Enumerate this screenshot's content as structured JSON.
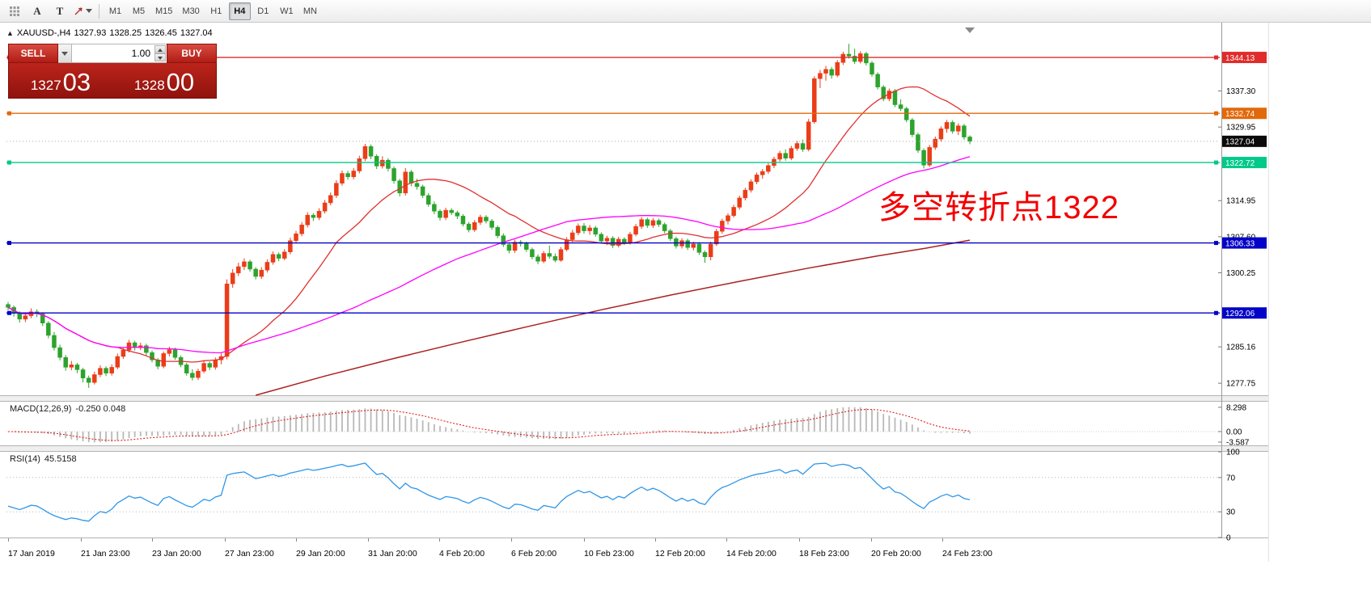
{
  "toolbar": {
    "tools": [
      {
        "name": "grid-tool"
      },
      {
        "name": "text-tool",
        "label": "A"
      },
      {
        "name": "label-tool",
        "label": "T"
      },
      {
        "name": "shapes-tool"
      }
    ],
    "timeframes": [
      "M1",
      "M5",
      "M15",
      "M30",
      "H1",
      "H4",
      "D1",
      "W1",
      "MN"
    ],
    "active_timeframe": "H4"
  },
  "icons": {
    "collapse": "▲"
  },
  "chart": {
    "header": {
      "symbol_period": "XAUUSD-,H4",
      "open": "1327.93",
      "high": "1328.25",
      "low": "1326.45",
      "close": "1327.04"
    }
  },
  "trade_panel": {
    "sell_label": "SELL",
    "buy_label": "BUY",
    "volume": "1.00",
    "sell_price_main": "1327",
    "sell_price_pips": "03",
    "buy_price_main": "1328",
    "buy_price_pips": "00",
    "panel_color": "#a61b14",
    "button_color": "#c22a20"
  },
  "annotation": {
    "text": "多空转折点1322",
    "color": "#f20000"
  },
  "chart_data": {
    "type": "candlestick",
    "symbol": "XAUUSD-",
    "timeframe": "H4",
    "price_axis": {
      "max": 1350.4,
      "min": 1275.3,
      "ticks": [
        "1337.30",
        "1329.95",
        "1314.95",
        "1307.60",
        "1300.25",
        "1285.16",
        "1277.75"
      ]
    },
    "current_price": {
      "value": 1327.04,
      "label": "1327.04",
      "bg": "#0a0a0a"
    },
    "hlines": [
      {
        "price": 1344.13,
        "label": "1344.13",
        "color": "#e02b2b"
      },
      {
        "price": 1332.74,
        "label": "1332.74",
        "color": "#e2690b"
      },
      {
        "price": 1322.72,
        "label": "1322.72",
        "color": "#00c98a"
      },
      {
        "price": 1306.33,
        "label": "1306.33",
        "color": "#0202c8"
      },
      {
        "price": 1292.06,
        "label": "1292.06",
        "color": "#0202c8"
      }
    ],
    "colors": {
      "bull": "#ea3d18",
      "bear": "#2da32d",
      "ma20": "#e13030",
      "ma60": "#ff00ff",
      "ma_slow": "#aa2020",
      "macd_bar": "#b8b8b8",
      "macd_signal": "#e02020",
      "rsi": "#2f96e8"
    },
    "moving_averages": [
      {
        "period": 20,
        "color_key": "ma20"
      },
      {
        "period": 60,
        "color_key": "ma60"
      }
    ],
    "slow_ma_points": [
      [
        43,
        1275.3
      ],
      [
        55,
        1279.2
      ],
      [
        67,
        1282.8
      ],
      [
        79,
        1286.2
      ],
      [
        91,
        1289.5
      ],
      [
        103,
        1292.7
      ],
      [
        115,
        1295.7
      ],
      [
        127,
        1298.5
      ],
      [
        139,
        1301.2
      ],
      [
        151,
        1303.7
      ],
      [
        159,
        1305.2
      ],
      [
        167,
        1306.9
      ]
    ],
    "candles": [
      [
        1293.8,
        1294.3,
        1292.6,
        1293.2
      ],
      [
        1293.2,
        1293.6,
        1291.3,
        1292.0
      ],
      [
        1292.0,
        1292.4,
        1290.1,
        1290.8
      ],
      [
        1290.8,
        1292.2,
        1290.2,
        1291.5
      ],
      [
        1291.5,
        1293.0,
        1291.0,
        1292.3
      ],
      [
        1292.3,
        1292.8,
        1291.2,
        1291.9
      ],
      [
        1291.9,
        1292.2,
        1289.4,
        1290.0
      ],
      [
        1290.0,
        1290.4,
        1286.9,
        1287.5
      ],
      [
        1287.5,
        1288.2,
        1284.4,
        1285.0
      ],
      [
        1285.0,
        1285.6,
        1282.4,
        1283.0
      ],
      [
        1283.0,
        1283.5,
        1280.3,
        1281.0
      ],
      [
        1281.0,
        1282.3,
        1280.4,
        1281.5
      ],
      [
        1281.5,
        1281.9,
        1279.8,
        1280.5
      ],
      [
        1280.5,
        1280.9,
        1277.9,
        1278.8
      ],
      [
        1278.8,
        1279.3,
        1276.8,
        1277.9
      ],
      [
        1277.9,
        1280.1,
        1277.5,
        1279.5
      ],
      [
        1279.5,
        1281.4,
        1279.0,
        1280.8
      ],
      [
        1280.8,
        1281.2,
        1279.2,
        1279.8
      ],
      [
        1279.8,
        1281.6,
        1279.3,
        1281.0
      ],
      [
        1281.0,
        1283.8,
        1280.6,
        1283.2
      ],
      [
        1283.2,
        1285.1,
        1282.7,
        1284.5
      ],
      [
        1284.5,
        1286.6,
        1284.0,
        1286.0
      ],
      [
        1286.0,
        1286.4,
        1284.4,
        1285.0
      ],
      [
        1285.0,
        1286.0,
        1284.5,
        1285.4
      ],
      [
        1285.4,
        1285.8,
        1283.4,
        1284.0
      ],
      [
        1284.0,
        1284.4,
        1282.0,
        1282.5
      ],
      [
        1282.5,
        1282.9,
        1280.6,
        1281.2
      ],
      [
        1281.2,
        1284.2,
        1280.8,
        1283.8
      ],
      [
        1283.8,
        1285.2,
        1283.2,
        1284.6
      ],
      [
        1284.6,
        1285.0,
        1282.5,
        1283.0
      ],
      [
        1283.0,
        1283.4,
        1281.0,
        1281.5
      ],
      [
        1281.5,
        1281.9,
        1279.3,
        1279.8
      ],
      [
        1279.8,
        1280.6,
        1278.3,
        1278.9
      ],
      [
        1278.9,
        1280.7,
        1278.4,
        1280.2
      ],
      [
        1280.2,
        1282.3,
        1279.8,
        1281.8
      ],
      [
        1281.8,
        1282.2,
        1280.4,
        1281.0
      ],
      [
        1281.0,
        1283.0,
        1280.5,
        1282.5
      ],
      [
        1282.5,
        1283.8,
        1281.6,
        1283.2
      ],
      [
        1283.2,
        1298.9,
        1282.6,
        1298.0
      ],
      [
        1298.0,
        1301.0,
        1297.2,
        1300.2
      ],
      [
        1300.2,
        1302.3,
        1299.6,
        1301.5
      ],
      [
        1301.5,
        1303.2,
        1300.8,
        1302.5
      ],
      [
        1302.5,
        1302.9,
        1300.5,
        1301.0
      ],
      [
        1301.0,
        1301.4,
        1298.9,
        1299.5
      ],
      [
        1299.5,
        1301.4,
        1299.0,
        1300.8
      ],
      [
        1300.8,
        1303.0,
        1300.3,
        1302.4
      ],
      [
        1302.4,
        1304.6,
        1301.9,
        1304.0
      ],
      [
        1304.0,
        1304.4,
        1302.6,
        1303.2
      ],
      [
        1303.2,
        1305.1,
        1302.8,
        1304.5
      ],
      [
        1304.5,
        1307.4,
        1304.0,
        1306.8
      ],
      [
        1306.8,
        1308.8,
        1306.2,
        1308.2
      ],
      [
        1308.2,
        1310.6,
        1307.7,
        1310.0
      ],
      [
        1310.0,
        1312.6,
        1309.5,
        1312.0
      ],
      [
        1312.0,
        1312.4,
        1310.8,
        1311.5
      ],
      [
        1311.5,
        1313.4,
        1311.0,
        1312.8
      ],
      [
        1312.8,
        1315.1,
        1312.3,
        1314.5
      ],
      [
        1314.5,
        1316.6,
        1314.0,
        1316.0
      ],
      [
        1316.0,
        1319.1,
        1315.5,
        1318.5
      ],
      [
        1318.5,
        1321.1,
        1318.0,
        1320.5
      ],
      [
        1320.5,
        1321.0,
        1319.2,
        1319.8
      ],
      [
        1319.8,
        1321.6,
        1319.3,
        1321.0
      ],
      [
        1321.0,
        1324.1,
        1320.5,
        1323.5
      ],
      [
        1323.5,
        1326.5,
        1323.0,
        1326.0
      ],
      [
        1326.0,
        1326.4,
        1323.4,
        1324.0
      ],
      [
        1324.0,
        1324.4,
        1321.4,
        1322.0
      ],
      [
        1322.0,
        1324.0,
        1321.5,
        1323.2
      ],
      [
        1323.2,
        1323.6,
        1320.9,
        1321.5
      ],
      [
        1321.5,
        1321.9,
        1318.4,
        1319.0
      ],
      [
        1319.0,
        1319.4,
        1315.8,
        1316.5
      ],
      [
        1316.5,
        1321.6,
        1316.0,
        1320.8
      ],
      [
        1320.8,
        1321.2,
        1317.9,
        1318.5
      ],
      [
        1318.5,
        1319.4,
        1317.2,
        1317.8
      ],
      [
        1317.8,
        1318.2,
        1315.5,
        1316.0
      ],
      [
        1316.0,
        1316.5,
        1313.7,
        1314.2
      ],
      [
        1314.2,
        1314.8,
        1312.2,
        1312.8
      ],
      [
        1312.8,
        1313.2,
        1310.9,
        1311.5
      ],
      [
        1311.5,
        1313.5,
        1311.0,
        1313.0
      ],
      [
        1313.0,
        1313.4,
        1312.0,
        1312.5
      ],
      [
        1312.5,
        1312.9,
        1311.2,
        1311.8
      ],
      [
        1311.8,
        1312.2,
        1309.7,
        1310.2
      ],
      [
        1310.2,
        1310.6,
        1308.5,
        1309.0
      ],
      [
        1309.0,
        1311.0,
        1308.6,
        1310.5
      ],
      [
        1310.5,
        1312.1,
        1310.0,
        1311.6
      ],
      [
        1311.6,
        1312.0,
        1310.3,
        1310.8
      ],
      [
        1310.8,
        1311.2,
        1309.0,
        1309.5
      ],
      [
        1309.5,
        1309.9,
        1307.3,
        1307.8
      ],
      [
        1307.8,
        1308.3,
        1305.5,
        1306.0
      ],
      [
        1306.0,
        1306.4,
        1304.2,
        1304.8
      ],
      [
        1304.8,
        1307.0,
        1304.3,
        1306.5
      ],
      [
        1306.5,
        1306.9,
        1305.6,
        1306.2
      ],
      [
        1306.2,
        1306.6,
        1304.5,
        1305.0
      ],
      [
        1305.0,
        1305.4,
        1303.0,
        1303.5
      ],
      [
        1303.5,
        1304.0,
        1302.0,
        1302.6
      ],
      [
        1302.6,
        1304.7,
        1302.2,
        1304.2
      ],
      [
        1304.2,
        1305.8,
        1303.1,
        1303.6
      ],
      [
        1303.6,
        1304.2,
        1302.4,
        1302.8
      ],
      [
        1302.8,
        1305.5,
        1302.5,
        1305.0
      ],
      [
        1305.0,
        1307.5,
        1304.6,
        1307.0
      ],
      [
        1307.0,
        1309.0,
        1306.5,
        1308.4
      ],
      [
        1308.4,
        1310.3,
        1307.9,
        1309.8
      ],
      [
        1309.8,
        1310.4,
        1308.2,
        1308.8
      ],
      [
        1308.8,
        1310.0,
        1308.0,
        1309.4
      ],
      [
        1309.4,
        1309.8,
        1307.6,
        1308.1
      ],
      [
        1308.1,
        1308.5,
        1306.2,
        1306.7
      ],
      [
        1306.7,
        1307.8,
        1305.9,
        1307.3
      ],
      [
        1307.3,
        1307.7,
        1305.3,
        1305.8
      ],
      [
        1305.8,
        1307.6,
        1305.4,
        1307.1
      ],
      [
        1307.1,
        1307.5,
        1305.9,
        1306.4
      ],
      [
        1306.4,
        1308.6,
        1306.0,
        1308.1
      ],
      [
        1308.1,
        1310.2,
        1307.7,
        1309.7
      ],
      [
        1309.7,
        1311.6,
        1309.2,
        1311.1
      ],
      [
        1311.1,
        1311.5,
        1309.4,
        1309.9
      ],
      [
        1309.9,
        1311.4,
        1309.4,
        1310.9
      ],
      [
        1310.9,
        1311.3,
        1309.6,
        1310.1
      ],
      [
        1310.1,
        1310.5,
        1308.3,
        1308.8
      ],
      [
        1308.8,
        1309.2,
        1306.7,
        1307.2
      ],
      [
        1307.2,
        1307.6,
        1305.2,
        1305.7
      ],
      [
        1305.7,
        1307.3,
        1305.2,
        1306.8
      ],
      [
        1306.8,
        1307.2,
        1304.9,
        1305.4
      ],
      [
        1305.4,
        1306.6,
        1304.8,
        1306.1
      ],
      [
        1306.1,
        1306.5,
        1303.9,
        1304.4
      ],
      [
        1304.4,
        1304.8,
        1302.3,
        1303.5
      ],
      [
        1303.5,
        1306.6,
        1302.8,
        1306.1
      ],
      [
        1306.1,
        1309.2,
        1305.7,
        1308.7
      ],
      [
        1308.7,
        1311.3,
        1308.2,
        1310.8
      ],
      [
        1310.8,
        1312.4,
        1310.1,
        1311.9
      ],
      [
        1311.9,
        1314.1,
        1311.5,
        1313.6
      ],
      [
        1313.6,
        1316.0,
        1313.1,
        1315.5
      ],
      [
        1315.5,
        1317.6,
        1315.0,
        1317.1
      ],
      [
        1317.1,
        1319.3,
        1316.6,
        1318.8
      ],
      [
        1318.8,
        1320.7,
        1318.3,
        1320.2
      ],
      [
        1320.2,
        1321.4,
        1319.4,
        1320.9
      ],
      [
        1320.9,
        1322.6,
        1320.4,
        1322.1
      ],
      [
        1322.1,
        1323.9,
        1321.6,
        1323.4
      ],
      [
        1323.4,
        1325.1,
        1322.9,
        1324.6
      ],
      [
        1324.6,
        1325.4,
        1323.1,
        1323.6
      ],
      [
        1323.6,
        1326.1,
        1323.2,
        1325.6
      ],
      [
        1325.6,
        1327.1,
        1325.1,
        1326.6
      ],
      [
        1326.6,
        1327.4,
        1324.9,
        1325.4
      ],
      [
        1325.4,
        1331.6,
        1325.0,
        1331.0
      ],
      [
        1331.0,
        1340.3,
        1330.6,
        1339.8
      ],
      [
        1339.8,
        1341.6,
        1337.9,
        1340.9
      ],
      [
        1340.9,
        1342.4,
        1339.4,
        1341.7
      ],
      [
        1341.7,
        1342.2,
        1339.8,
        1340.5
      ],
      [
        1340.5,
        1343.6,
        1340.1,
        1343.1
      ],
      [
        1343.1,
        1345.3,
        1342.6,
        1344.8
      ],
      [
        1344.8,
        1346.9,
        1343.9,
        1344.4
      ],
      [
        1344.4,
        1345.9,
        1342.8,
        1343.3
      ],
      [
        1343.3,
        1345.4,
        1342.9,
        1344.9
      ],
      [
        1344.9,
        1345.3,
        1342.5,
        1343.0
      ],
      [
        1343.0,
        1343.4,
        1340.2,
        1340.7
      ],
      [
        1340.7,
        1341.1,
        1337.6,
        1338.1
      ],
      [
        1338.1,
        1338.5,
        1335.2,
        1335.7
      ],
      [
        1335.7,
        1337.8,
        1335.2,
        1337.3
      ],
      [
        1337.3,
        1337.7,
        1334.0,
        1334.5
      ],
      [
        1334.5,
        1335.6,
        1333.2,
        1333.7
      ],
      [
        1333.7,
        1334.1,
        1330.9,
        1331.4
      ],
      [
        1331.4,
        1331.8,
        1327.9,
        1328.4
      ],
      [
        1328.4,
        1328.8,
        1324.7,
        1325.2
      ],
      [
        1325.2,
        1325.6,
        1321.5,
        1322.2
      ],
      [
        1322.2,
        1326.3,
        1321.8,
        1325.8
      ],
      [
        1325.8,
        1328.0,
        1325.3,
        1327.5
      ],
      [
        1327.5,
        1330.1,
        1327.0,
        1329.6
      ],
      [
        1329.6,
        1331.4,
        1328.8,
        1330.9
      ],
      [
        1330.9,
        1331.3,
        1328.6,
        1329.1
      ],
      [
        1329.1,
        1330.7,
        1328.3,
        1330.2
      ],
      [
        1330.2,
        1330.6,
        1327.4,
        1327.9
      ],
      [
        1327.93,
        1328.25,
        1326.45,
        1327.04
      ]
    ],
    "macd": {
      "label": "MACD(12,26,9)",
      "values": "-0.250 0.048",
      "params": [
        12,
        26,
        9
      ],
      "axis_max": 10.2,
      "axis_min": -4.7,
      "ticks": [
        "8.298",
        "0.00",
        "-3.587"
      ]
    },
    "rsi": {
      "label": "RSI(14)",
      "value": "45.5158",
      "period": 14,
      "ticks": [
        "100",
        "70",
        "30",
        "0"
      ],
      "levels": [
        70,
        30
      ]
    },
    "x_labels": [
      [
        "17 Jan 2019",
        10
      ],
      [
        "21 Jan 23:00",
        100
      ],
      [
        "23 Jan 20:00",
        188
      ],
      [
        "27 Jan 23:00",
        278
      ],
      [
        "29 Jan 20:00",
        366
      ],
      [
        "31 Jan 20:00",
        455
      ],
      [
        "4 Feb 20:00",
        543
      ],
      [
        "6 Feb 20:00",
        632
      ],
      [
        "10 Feb 23:00",
        722
      ],
      [
        "12 Feb 20:00",
        810
      ],
      [
        "14 Feb 20:00",
        898
      ],
      [
        "18 Feb 23:00",
        988
      ],
      [
        "20 Feb 20:00",
        1077
      ],
      [
        "24 Feb 23:00",
        1165
      ]
    ]
  }
}
